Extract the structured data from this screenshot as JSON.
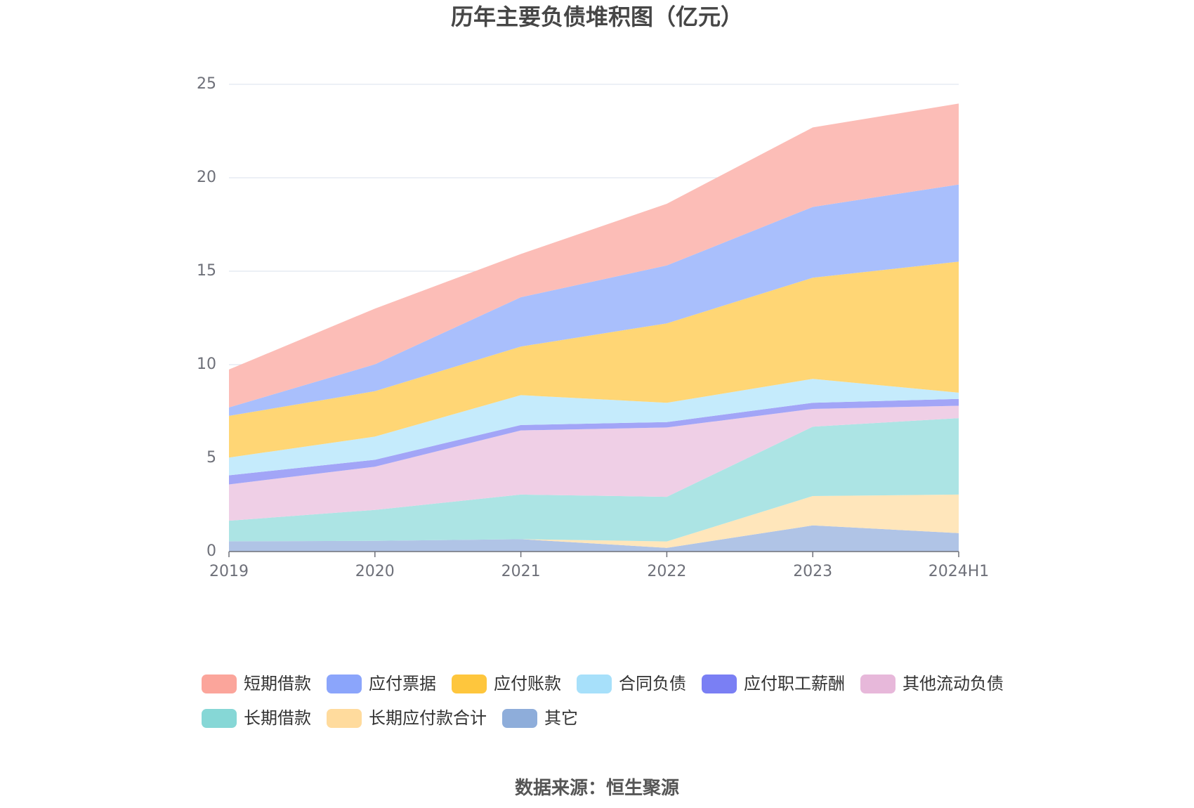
{
  "title": "历年主要负债堆积图（亿元）",
  "source": "数据来源：恒生聚源",
  "chart_data": {
    "type": "area",
    "stacked": true,
    "title": "历年主要负债堆积图（亿元）",
    "xlabel": "",
    "ylabel": "",
    "categories": [
      "2019",
      "2020",
      "2021",
      "2022",
      "2023",
      "2024H1"
    ],
    "ylim": [
      0,
      25
    ],
    "yticks": [
      0,
      5,
      10,
      15,
      20,
      25
    ],
    "grid": true,
    "legend_position": "bottom",
    "series": [
      {
        "name": "短期借款",
        "color": "#fba59b",
        "area_color": "#fcbdb7",
        "values": [
          2.03,
          2.98,
          2.31,
          3.3,
          4.25,
          4.33
        ]
      },
      {
        "name": "应付票据",
        "color": "#8ba5fb",
        "area_color": "#a9bffc",
        "values": [
          0.45,
          1.44,
          2.64,
          3.1,
          3.79,
          4.13
        ]
      },
      {
        "name": "应付账款",
        "color": "#fec63d",
        "area_color": "#ffd675",
        "values": [
          2.23,
          2.43,
          2.6,
          4.25,
          5.41,
          7.01
        ]
      },
      {
        "name": "合同负债",
        "color": "#a7e0fa",
        "area_color": "#c5ebfc",
        "values": [
          0.95,
          1.24,
          1.6,
          1.03,
          1.28,
          0.33
        ]
      },
      {
        "name": "应付职工薪酬",
        "color": "#7a7ff4",
        "area_color": "#a2a5f7",
        "values": [
          0.49,
          0.37,
          0.29,
          0.29,
          0.33,
          0.37
        ]
      },
      {
        "name": "其他流动负债",
        "color": "#e7b8da",
        "area_color": "#efcfe6",
        "values": [
          1.94,
          2.31,
          3.43,
          3.71,
          0.95,
          0.66
        ]
      },
      {
        "name": "长期借款",
        "color": "#86d7d6",
        "area_color": "#ace4e4",
        "values": [
          1.1,
          1.66,
          2.39,
          2.39,
          3.71,
          4.09
        ]
      },
      {
        "name": "长期应付款合计",
        "color": "#ffdb9d",
        "area_color": "#ffe6bb",
        "values": [
          0,
          0,
          0,
          0.34,
          1.57,
          2.06
        ]
      },
      {
        "name": "其它",
        "color": "#8eadda",
        "area_color": "#b0c4e6",
        "values": [
          0.55,
          0.57,
          0.66,
          0.2,
          1.4,
          0.99
        ]
      }
    ]
  },
  "colors": {
    "grid": "#e0e6f1",
    "axis": "#6e7079",
    "title": "#464646"
  }
}
